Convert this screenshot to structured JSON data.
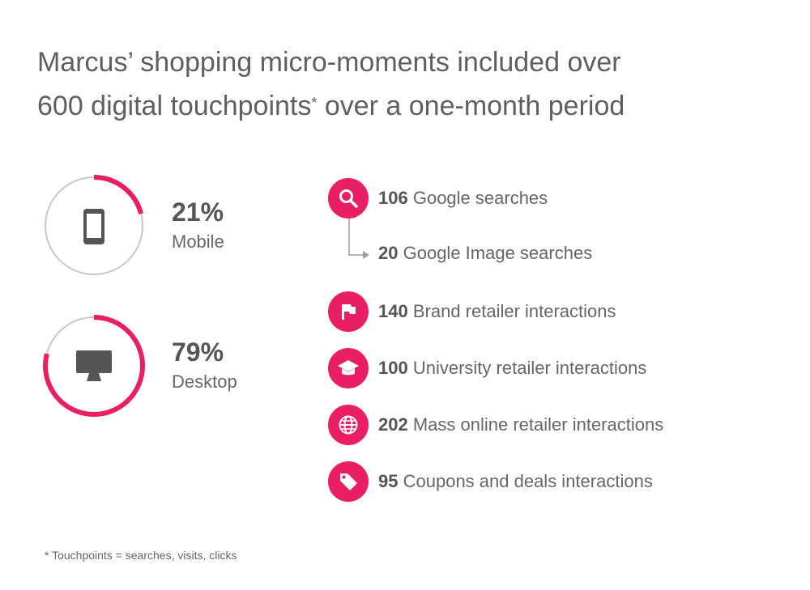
{
  "title": {
    "line1": "Marcus’ shopping micro-moments included over",
    "line2_main": "600 digital touchpoints",
    "line2_sup": "*",
    "line2_tail": " over a one-month period"
  },
  "colors": {
    "accent": "#e91e63",
    "ring_track": "#c8c8c8",
    "text": "#5f5f5f",
    "icon_dark": "#555555"
  },
  "chart_data": [
    {
      "type": "pie",
      "slices": [
        {
          "label": "Mobile",
          "value": 21,
          "display": "21%",
          "icon": "smartphone-icon"
        },
        {
          "label": "Desktop",
          "value": 79,
          "display": "79%",
          "icon": "desktop-monitor-icon"
        }
      ]
    },
    {
      "type": "table",
      "rows": [
        {
          "value": 106,
          "number": "106",
          "label": "Google searches",
          "icon": "search-icon"
        },
        {
          "value": 20,
          "number": "20",
          "label": "Google Image searches",
          "icon": "arrow-connector",
          "sub_of": "Google searches"
        },
        {
          "value": 140,
          "number": "140",
          "label": "Brand retailer interactions",
          "icon": "flag-icon"
        },
        {
          "value": 100,
          "number": "100",
          "label": "University retailer interactions",
          "icon": "graduation-cap-icon"
        },
        {
          "value": 202,
          "number": "202",
          "label": "Mass online retailer interactions",
          "icon": "globe-icon"
        },
        {
          "value": 95,
          "number": "95",
          "label": "Coupons and deals interactions",
          "icon": "tag-icon"
        }
      ]
    }
  ],
  "footnote": "* Touchpoints = searches, visits, clicks"
}
